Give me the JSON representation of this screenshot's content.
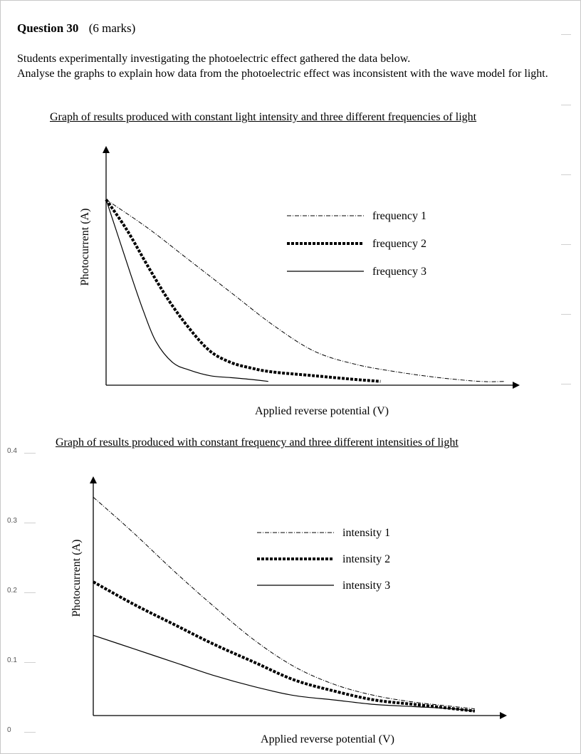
{
  "question": {
    "number": "Question 30",
    "marks": "(6 marks)",
    "intro_line1": "Students experimentally investigating the photoelectric effect gathered the data below.",
    "intro_line2": "Analyse the graphs to explain how data from the photoelectric effect was inconsistent with the wave model for light."
  },
  "side_scale": [
    "0.4",
    "0.3",
    "0.2",
    "0.1",
    "0"
  ],
  "chart_data": [
    {
      "type": "line",
      "title": "Graph of results produced with constant light intensity and three different frequencies of light",
      "xlabel": "Applied reverse potential (V)",
      "ylabel": "Photocurrent (A)",
      "legend_position": "top-right",
      "axis_ticks": "none",
      "series": [
        {
          "name": "frequency 1",
          "style": "dash-dot-thin",
          "x": [
            0,
            0.1,
            0.2,
            0.3,
            0.4,
            0.5,
            0.6,
            0.7,
            0.8,
            0.9,
            0.96
          ],
          "y": [
            0.98,
            0.83,
            0.66,
            0.49,
            0.32,
            0.18,
            0.11,
            0.07,
            0.04,
            0.02,
            0.02
          ]
        },
        {
          "name": "frequency 2",
          "style": "thick-dotted",
          "x": [
            0,
            0.05,
            0.1,
            0.15,
            0.2,
            0.25,
            0.3,
            0.35,
            0.4,
            0.5,
            0.6,
            0.66
          ],
          "y": [
            0.98,
            0.82,
            0.63,
            0.45,
            0.3,
            0.18,
            0.12,
            0.09,
            0.07,
            0.05,
            0.03,
            0.02
          ]
        },
        {
          "name": "frequency 3",
          "style": "solid-thin",
          "x": [
            0,
            0.03,
            0.06,
            0.09,
            0.12,
            0.16,
            0.2,
            0.25,
            0.3,
            0.35,
            0.39
          ],
          "y": [
            0.98,
            0.78,
            0.58,
            0.39,
            0.23,
            0.12,
            0.08,
            0.05,
            0.04,
            0.03,
            0.02
          ]
        }
      ]
    },
    {
      "type": "line",
      "title": "Graph of results produced with constant frequency and three different intensities of light",
      "xlabel": "Applied reverse potential (V)",
      "ylabel": "Photocurrent (A)",
      "legend_position": "top-right",
      "axis_ticks": "none",
      "series": [
        {
          "name": "intensity 1",
          "style": "dash-dot-thin",
          "x": [
            0,
            0.1,
            0.2,
            0.3,
            0.4,
            0.5,
            0.6,
            0.7,
            0.8,
            0.9,
            0.95
          ],
          "y": [
            0.98,
            0.82,
            0.65,
            0.49,
            0.34,
            0.22,
            0.14,
            0.09,
            0.06,
            0.04,
            0.03
          ]
        },
        {
          "name": "intensity 2",
          "style": "thick-dotted",
          "x": [
            0,
            0.1,
            0.2,
            0.3,
            0.4,
            0.5,
            0.6,
            0.7,
            0.8,
            0.9,
            0.95
          ],
          "y": [
            0.6,
            0.5,
            0.41,
            0.32,
            0.24,
            0.16,
            0.11,
            0.07,
            0.05,
            0.03,
            0.02
          ]
        },
        {
          "name": "intensity 3",
          "style": "solid-thin",
          "x": [
            0,
            0.1,
            0.2,
            0.3,
            0.4,
            0.5,
            0.6,
            0.7,
            0.8,
            0.9,
            0.95
          ],
          "y": [
            0.36,
            0.3,
            0.24,
            0.18,
            0.13,
            0.09,
            0.07,
            0.05,
            0.04,
            0.03,
            0.02
          ]
        }
      ]
    }
  ]
}
